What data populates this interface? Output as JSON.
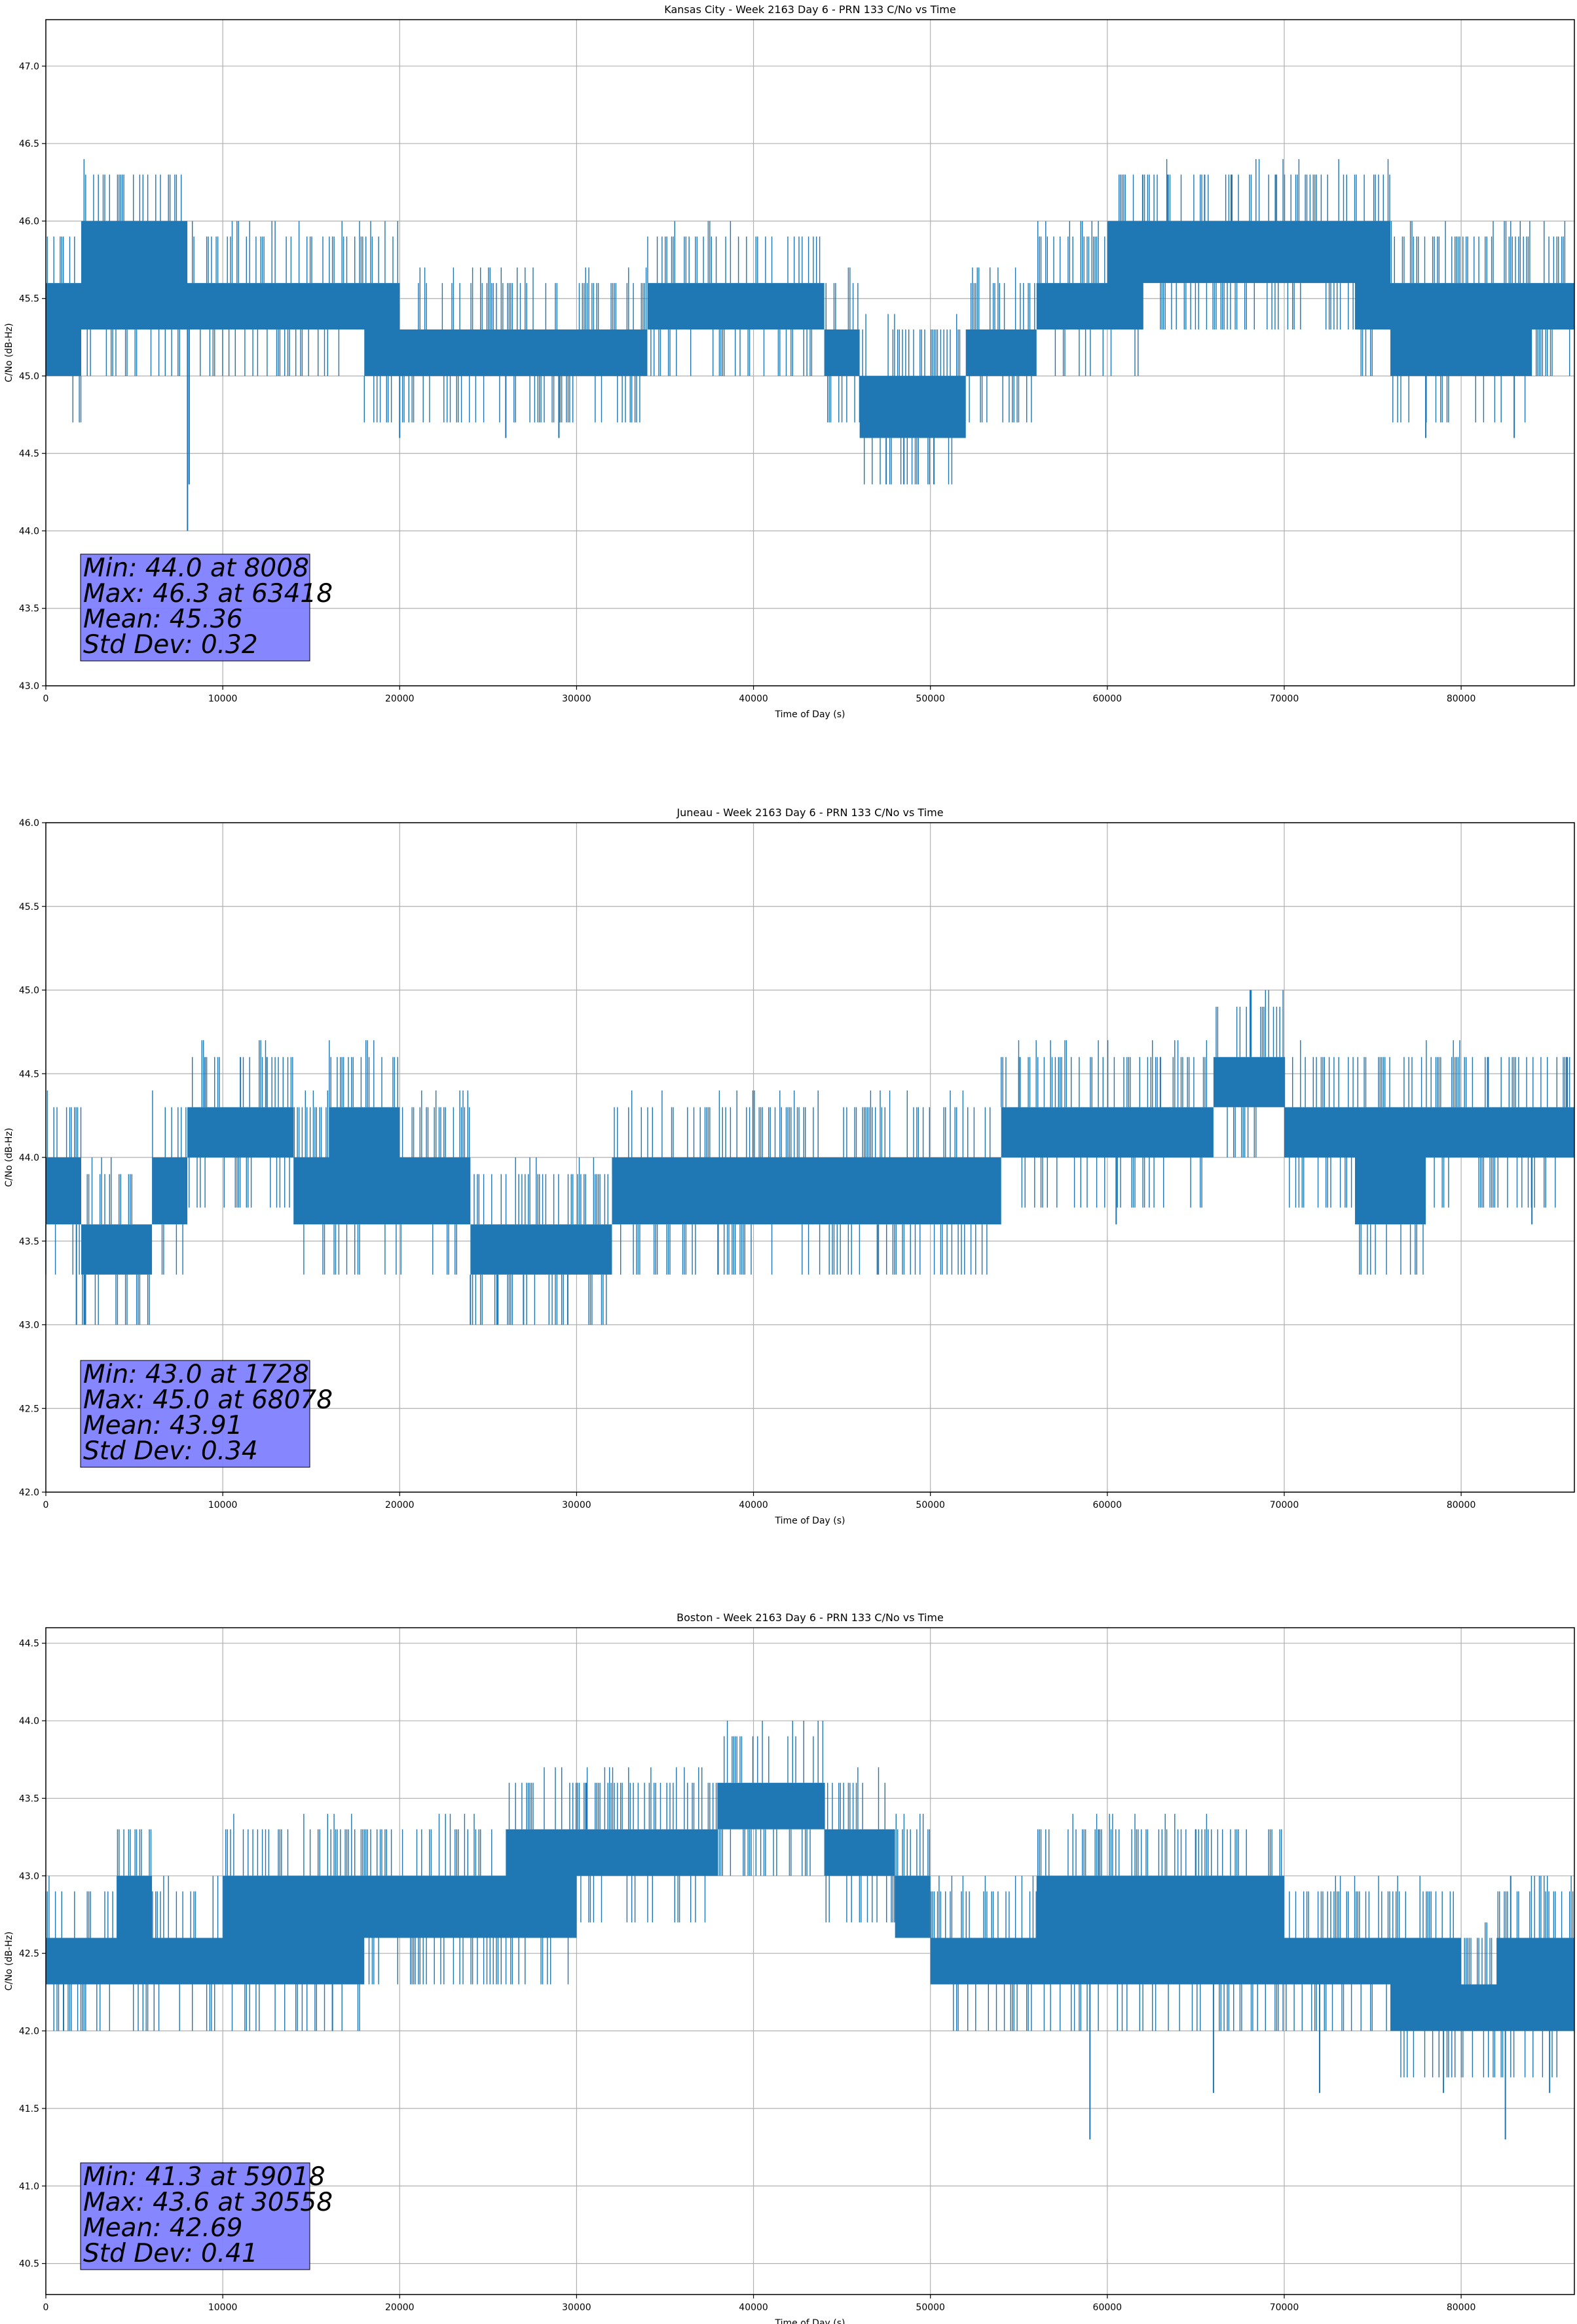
{
  "series_color": "#1f77b4",
  "stats_box_color": "#8080ff",
  "chart_data": [
    {
      "type": "line",
      "title": "Kansas City - Week 2163 Day 6 - PRN 133 C/No vs Time",
      "xlabel": "Time of Day (s)",
      "ylabel": "C/No (dB-Hz)",
      "xlim": [
        0,
        86400
      ],
      "ylim": [
        43.0,
        47.3
      ],
      "xticks": [
        0,
        10000,
        20000,
        30000,
        40000,
        50000,
        60000,
        70000,
        80000
      ],
      "yticks": [
        43.0,
        43.5,
        44.0,
        44.5,
        45.0,
        45.5,
        46.0,
        46.5,
        47.0
      ],
      "grid": true,
      "stats": [
        "Min: 44.0 at 8008",
        "Max: 46.3 at 63418",
        "Mean: 45.36",
        "Std Dev: 0.32"
      ],
      "series": [
        {
          "x": [
            0,
            2000,
            4000,
            6000,
            8000,
            10000,
            12000,
            14000,
            16000,
            18000,
            20000,
            22000,
            24000,
            26000,
            28000,
            30000,
            32000,
            34000,
            36000,
            38000,
            40000,
            42000,
            44000,
            46000,
            48000,
            50000,
            52000,
            54000,
            56000,
            58000,
            60000,
            62000,
            64000,
            66000,
            68000,
            70000,
            72000,
            74000,
            76000,
            78000,
            80000,
            82000,
            84000,
            86400
          ],
          "y_low": [
            45.0,
            45.3,
            45.3,
            45.3,
            45.3,
            45.3,
            45.3,
            45.3,
            45.3,
            45.0,
            45.0,
            45.0,
            45.0,
            45.0,
            45.0,
            45.0,
            45.0,
            45.3,
            45.3,
            45.3,
            45.3,
            45.3,
            45.0,
            44.6,
            44.6,
            44.6,
            45.0,
            45.0,
            45.3,
            45.3,
            45.3,
            45.6,
            45.6,
            45.6,
            45.6,
            45.6,
            45.6,
            45.3,
            45.0,
            45.0,
            45.0,
            45.0,
            45.3,
            45.3
          ],
          "y_high": [
            45.6,
            46.0,
            46.0,
            46.0,
            45.6,
            45.6,
            45.6,
            45.6,
            45.6,
            45.6,
            45.3,
            45.3,
            45.3,
            45.3,
            45.3,
            45.3,
            45.3,
            45.6,
            45.6,
            45.6,
            45.6,
            45.6,
            45.3,
            45.0,
            45.0,
            45.0,
            45.3,
            45.3,
            45.6,
            45.6,
            46.0,
            46.0,
            46.0,
            46.0,
            46.0,
            46.0,
            46.0,
            46.0,
            45.6,
            45.6,
            45.6,
            45.6,
            45.6,
            45.6
          ],
          "spikes_low": [
            [
              8008,
              44.0
            ],
            [
              8100,
              44.3
            ],
            [
              20000,
              44.6
            ],
            [
              26000,
              44.6
            ],
            [
              29000,
              44.6
            ],
            [
              47500,
              44.3
            ],
            [
              48500,
              44.3
            ],
            [
              50200,
              44.3
            ],
            [
              78000,
              44.6
            ],
            [
              83000,
              44.6
            ]
          ],
          "spikes_high": [
            [
              62000,
              46.3
            ],
            [
              63418,
              46.3
            ],
            [
              65500,
              46.3
            ],
            [
              67000,
              46.3
            ],
            [
              69500,
              46.3
            ]
          ]
        }
      ]
    },
    {
      "type": "line",
      "title": "Juneau - Week 2163 Day 6 - PRN 133 C/No vs Time",
      "xlabel": "Time of Day (s)",
      "ylabel": "C/No (dB-Hz)",
      "xlim": [
        0,
        86400
      ],
      "ylim": [
        42.0,
        46.0
      ],
      "xticks": [
        0,
        10000,
        20000,
        30000,
        40000,
        50000,
        60000,
        70000,
        80000
      ],
      "yticks": [
        42.0,
        42.5,
        43.0,
        43.5,
        44.0,
        44.5,
        45.0,
        45.5,
        46.0
      ],
      "grid": true,
      "stats": [
        "Min: 43.0 at 1728",
        "Max: 45.0 at 68078",
        "Mean: 43.91",
        "Std Dev: 0.34"
      ],
      "series": [
        {
          "x": [
            0,
            2000,
            4000,
            6000,
            8000,
            10000,
            12000,
            14000,
            16000,
            18000,
            20000,
            22000,
            24000,
            26000,
            28000,
            30000,
            32000,
            34000,
            36000,
            38000,
            40000,
            42000,
            44000,
            46000,
            48000,
            50000,
            52000,
            54000,
            56000,
            58000,
            60000,
            62000,
            64000,
            66000,
            68000,
            70000,
            72000,
            74000,
            76000,
            78000,
            80000,
            82000,
            84000,
            86400
          ],
          "y_low": [
            43.6,
            43.3,
            43.3,
            43.6,
            44.0,
            44.0,
            44.0,
            43.6,
            43.6,
            43.6,
            43.6,
            43.6,
            43.3,
            43.3,
            43.3,
            43.3,
            43.6,
            43.6,
            43.6,
            43.6,
            43.6,
            43.6,
            43.6,
            43.6,
            43.6,
            43.6,
            43.6,
            44.0,
            44.0,
            44.0,
            44.0,
            44.0,
            44.0,
            44.3,
            44.3,
            44.0,
            44.0,
            43.6,
            43.6,
            44.0,
            44.0,
            44.0,
            44.0,
            44.0
          ],
          "y_high": [
            44.0,
            43.6,
            43.6,
            44.0,
            44.3,
            44.3,
            44.3,
            44.0,
            44.3,
            44.3,
            44.0,
            44.0,
            43.6,
            43.6,
            43.6,
            43.6,
            44.0,
            44.0,
            44.0,
            44.0,
            44.0,
            44.0,
            44.0,
            44.0,
            44.0,
            44.0,
            44.0,
            44.3,
            44.3,
            44.3,
            44.3,
            44.3,
            44.3,
            44.6,
            44.6,
            44.3,
            44.3,
            44.3,
            44.3,
            44.3,
            44.3,
            44.3,
            44.3,
            44.3
          ],
          "spikes_low": [
            [
              1728,
              43.0
            ],
            [
              2200,
              43.0
            ],
            [
              24000,
              43.0
            ],
            [
              25500,
              43.0
            ],
            [
              27000,
              43.0
            ],
            [
              29500,
              43.0
            ],
            [
              38000,
              43.3
            ],
            [
              47000,
              43.3
            ],
            [
              60500,
              43.6
            ],
            [
              84000,
              43.6
            ]
          ],
          "spikes_high": [
            [
              9000,
              44.6
            ],
            [
              11000,
              44.6
            ],
            [
              12500,
              44.6
            ],
            [
              68078,
              45.0
            ],
            [
              55000,
              44.6
            ],
            [
              63000,
              44.6
            ],
            [
              81500,
              44.6
            ],
            [
              86000,
              44.6
            ]
          ]
        }
      ]
    },
    {
      "type": "line",
      "title": "Boston - Week 2163 Day 6 - PRN 133 C/No vs Time",
      "xlabel": "Time of Day (s)",
      "ylabel": "C/No (dB-Hz)",
      "xlim": [
        0,
        86400
      ],
      "ylim": [
        40.3,
        44.6
      ],
      "xticks": [
        0,
        10000,
        20000,
        30000,
        40000,
        50000,
        60000,
        70000,
        80000
      ],
      "yticks": [
        40.5,
        41.0,
        41.5,
        42.0,
        42.5,
        43.0,
        43.5,
        44.0,
        44.5
      ],
      "grid": true,
      "stats": [
        "Min: 41.3 at 59018",
        "Max: 43.6 at 30558",
        "Mean: 42.69",
        "Std Dev: 0.41"
      ],
      "series": [
        {
          "x": [
            0,
            2000,
            4000,
            6000,
            8000,
            10000,
            12000,
            14000,
            16000,
            18000,
            20000,
            22000,
            24000,
            26000,
            28000,
            30000,
            32000,
            34000,
            36000,
            38000,
            40000,
            42000,
            44000,
            46000,
            48000,
            50000,
            52000,
            54000,
            56000,
            58000,
            60000,
            62000,
            64000,
            66000,
            68000,
            70000,
            72000,
            74000,
            76000,
            78000,
            80000,
            82000,
            84000,
            86400
          ],
          "y_low": [
            42.3,
            42.3,
            42.3,
            42.3,
            42.3,
            42.3,
            42.3,
            42.3,
            42.3,
            42.6,
            42.6,
            42.6,
            42.6,
            42.6,
            42.6,
            43.0,
            43.0,
            43.0,
            43.0,
            43.3,
            43.3,
            43.3,
            43.0,
            43.0,
            42.6,
            42.3,
            42.3,
            42.3,
            42.3,
            42.3,
            42.3,
            42.3,
            42.3,
            42.3,
            42.3,
            42.3,
            42.3,
            42.3,
            42.0,
            42.0,
            42.0,
            42.0,
            42.0,
            42.0
          ],
          "y_high": [
            42.6,
            42.6,
            43.0,
            42.6,
            42.6,
            43.0,
            43.0,
            43.0,
            43.0,
            43.0,
            43.0,
            43.0,
            43.0,
            43.3,
            43.3,
            43.3,
            43.3,
            43.3,
            43.3,
            43.6,
            43.6,
            43.6,
            43.3,
            43.3,
            43.0,
            42.6,
            42.6,
            42.6,
            43.0,
            43.0,
            43.0,
            43.0,
            43.0,
            43.0,
            43.0,
            42.6,
            42.6,
            42.6,
            42.6,
            42.6,
            42.3,
            42.6,
            42.6,
            42.6
          ],
          "spikes_low": [
            [
              1000,
              42.0
            ],
            [
              16200,
              42.0
            ],
            [
              59018,
              41.3
            ],
            [
              66000,
              41.6
            ],
            [
              72000,
              41.6
            ],
            [
              79000,
              41.6
            ],
            [
              82500,
              41.3
            ],
            [
              85000,
              41.6
            ]
          ],
          "spikes_high": [
            [
              30558,
              43.6
            ],
            [
              59500,
              43.3
            ],
            [
              65000,
              43.3
            ],
            [
              82800,
              43.0
            ]
          ]
        }
      ]
    }
  ]
}
